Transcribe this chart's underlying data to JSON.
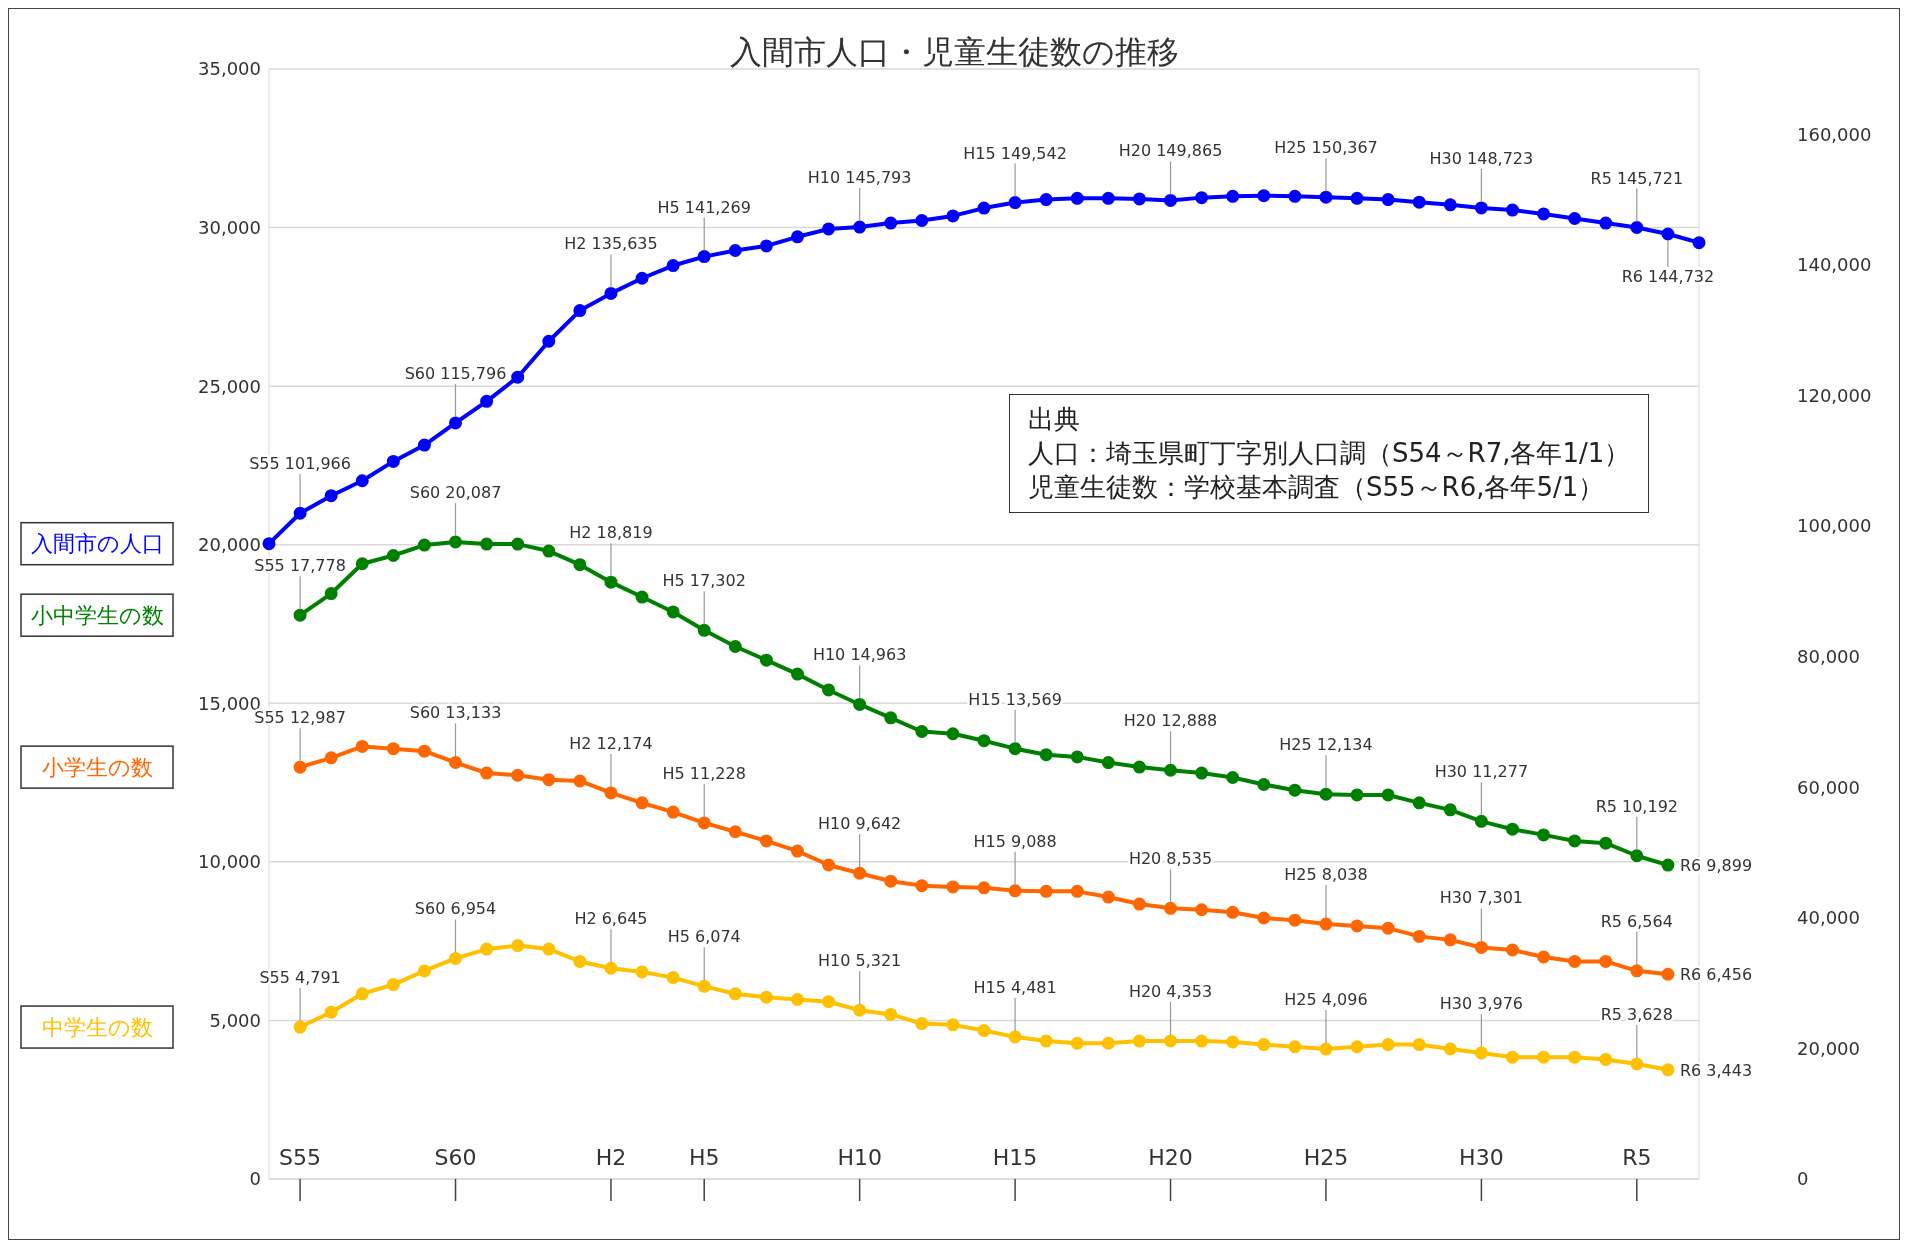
{
  "chart_data": {
    "type": "line",
    "title": "入間市人口・児童生徒数の推移",
    "categories": [
      null,
      "S55",
      null,
      null,
      null,
      null,
      "S60",
      null,
      null,
      null,
      null,
      "H2",
      null,
      null,
      "H5",
      null,
      null,
      null,
      null,
      "H10",
      null,
      null,
      null,
      null,
      "H15",
      null,
      null,
      null,
      null,
      "H20",
      null,
      null,
      null,
      null,
      "H25",
      null,
      null,
      null,
      null,
      "H30",
      null,
      null,
      null,
      null,
      "R5",
      null,
      null
    ],
    "series": [
      {
        "name": "入間市の人口",
        "color": "#0000ff",
        "axis": "y2",
        "values": [
          97300,
          101966,
          104650,
          106940,
          109900,
          112400,
          115796,
          119100,
          122800,
          128300,
          133000,
          135635,
          137950,
          139900,
          141269,
          142200,
          142900,
          144300,
          145500,
          145793,
          146400,
          146800,
          147500,
          148700,
          149542,
          150000,
          150200,
          150200,
          150100,
          149865,
          150300,
          150500,
          150600,
          150500,
          150367,
          150200,
          150000,
          149600,
          149200,
          148723,
          148400,
          147800,
          147100,
          146400,
          145721,
          144732,
          143400
        ],
        "value_labels": [
          null,
          "S55 101,966",
          null,
          null,
          null,
          null,
          "S60 115,796",
          null,
          null,
          null,
          null,
          "H2 135,635",
          null,
          null,
          "H5 141,269",
          null,
          null,
          null,
          null,
          "H10 145,793",
          null,
          null,
          null,
          null,
          "H15 149,542",
          null,
          null,
          null,
          null,
          "H20 149,865",
          null,
          null,
          null,
          null,
          "H25 150,367",
          null,
          null,
          null,
          null,
          "H30 148,723",
          null,
          null,
          null,
          null,
          "R5 145,721",
          "R6 144,732",
          null
        ]
      },
      {
        "name": "小中学生の数",
        "color": "#008000",
        "values": [
          null,
          17778,
          18460,
          19400,
          19660,
          19990,
          20087,
          20020,
          20020,
          19800,
          19370,
          18819,
          18350,
          17880,
          17302,
          16790,
          16360,
          15920,
          15420,
          14963,
          14540,
          14110,
          14040,
          13820,
          13569,
          13380,
          13310,
          13130,
          12990,
          12888,
          12800,
          12660,
          12440,
          12260,
          12134,
          12110,
          12110,
          11860,
          11640,
          11277,
          11030,
          10850,
          10660,
          10590,
          10192,
          9899,
          null
        ],
        "value_labels": [
          null,
          "S55 17,778",
          null,
          null,
          null,
          null,
          "S60 20,087",
          null,
          null,
          null,
          null,
          "H2 18,819",
          null,
          null,
          "H5 17,302",
          null,
          null,
          null,
          null,
          "H10 14,963",
          null,
          null,
          null,
          null,
          "H15 13,569",
          null,
          null,
          null,
          null,
          "H20 12,888",
          null,
          null,
          null,
          null,
          "H25 12,134",
          null,
          null,
          null,
          null,
          "H30 11,277",
          null,
          null,
          null,
          null,
          "R5 10,192",
          "R6 9,899",
          null
        ]
      },
      {
        "name": "小学生の数",
        "color": "#ff6600",
        "values": [
          null,
          12987,
          13280,
          13640,
          13570,
          13490,
          13133,
          12800,
          12730,
          12590,
          12550,
          12174,
          11860,
          11570,
          11228,
          10950,
          10660,
          10340,
          9900,
          9642,
          9390,
          9250,
          9210,
          9180,
          9088,
          9070,
          9070,
          8890,
          8670,
          8535,
          8490,
          8410,
          8230,
          8160,
          8038,
          7980,
          7910,
          7650,
          7540,
          7301,
          7220,
          7000,
          6860,
          6860,
          6564,
          6456,
          null
        ],
        "value_labels": [
          null,
          "S55 12,987",
          null,
          null,
          null,
          null,
          "S60 13,133",
          null,
          null,
          null,
          null,
          "H2 12,174",
          null,
          null,
          "H5 11,228",
          null,
          null,
          null,
          null,
          "H10 9,642",
          null,
          null,
          null,
          null,
          "H15 9,088",
          null,
          null,
          null,
          null,
          "H20 8,535",
          null,
          null,
          null,
          null,
          "H25 8,038",
          null,
          null,
          null,
          null,
          "H30 7,301",
          null,
          null,
          null,
          null,
          "R5 6,564",
          "R6 6,456",
          null
        ]
      },
      {
        "name": "中学生の数",
        "color": "#ffc000",
        "values": [
          null,
          4791,
          5260,
          5840,
          6130,
          6560,
          6954,
          7250,
          7360,
          7250,
          6860,
          6645,
          6530,
          6350,
          6074,
          5840,
          5730,
          5660,
          5590,
          5321,
          5190,
          4900,
          4860,
          4680,
          4481,
          4350,
          4280,
          4280,
          4350,
          4353,
          4350,
          4320,
          4240,
          4170,
          4096,
          4170,
          4240,
          4240,
          4100,
          3976,
          3840,
          3840,
          3840,
          3770,
          3628,
          3443,
          null
        ],
        "value_labels": [
          null,
          "S55 4,791",
          null,
          null,
          null,
          null,
          "S60 6,954",
          null,
          null,
          null,
          null,
          "H2 6,645",
          null,
          null,
          "H5 6,074",
          null,
          null,
          null,
          null,
          "H10 5,321",
          null,
          null,
          null,
          null,
          "H15 4,481",
          null,
          null,
          null,
          null,
          "H20 4,353",
          null,
          null,
          null,
          null,
          "H25 4,096",
          null,
          null,
          null,
          null,
          "H30 3,976",
          null,
          null,
          null,
          null,
          "R5 3,628",
          "R6 3,443",
          null
        ]
      }
    ],
    "ylim": [
      0,
      35000
    ],
    "yticks": [
      {
        "value": 0,
        "label": "0"
      },
      {
        "value": 5000,
        "label": "5,000"
      },
      {
        "value": 10000,
        "label": "10,000"
      },
      {
        "value": 15000,
        "label": "15,000"
      },
      {
        "value": 20000,
        "label": "20,000"
      },
      {
        "value": 25000,
        "label": "25,000"
      },
      {
        "value": 30000,
        "label": "30,000"
      },
      {
        "value": 35000,
        "label": "35,000"
      }
    ],
    "y2lim": [
      0,
      170000
    ],
    "y2ticks": [
      {
        "value": 0,
        "label": "0"
      },
      {
        "value": 20000,
        "label": "20,000"
      },
      {
        "value": 40000,
        "label": "40,000"
      },
      {
        "value": 60000,
        "label": "60,000"
      },
      {
        "value": 80000,
        "label": "80,000"
      },
      {
        "value": 100000,
        "label": "100,000"
      },
      {
        "value": 120000,
        "label": "120,000"
      },
      {
        "value": 140000,
        "label": "140,000"
      },
      {
        "value": 160000,
        "label": "160,000"
      }
    ],
    "annotations": [
      "出典",
      "人口：埼玉県町丁字別人口調（S54～R7,各年1/1）",
      "児童生徒数：学校基本調査（S55～R6,各年5/1）"
    ],
    "grid": "y",
    "legend": false,
    "marker": "circle",
    "line_style": "solid"
  }
}
